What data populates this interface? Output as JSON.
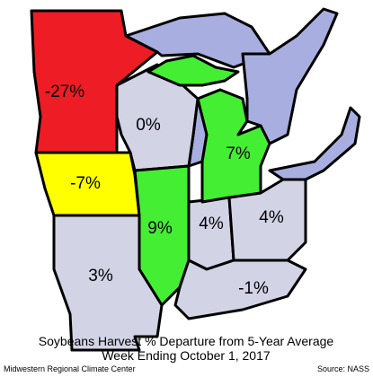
{
  "map": {
    "title": "Soybeans Harvest % Departure from 5-Year Average",
    "subtitle": "Week Ending October 1, 2017",
    "credit": "Midwestern Regional Climate Center",
    "source": "Source: NASS",
    "regions": [
      {
        "label": "-27%",
        "color": "#ee1c24"
      },
      {
        "label": "0%",
        "color": "#d3d3e6"
      },
      {
        "label": "-7%",
        "color": "#ffff00"
      },
      {
        "label": "9%",
        "color": "#44ee33"
      },
      {
        "label": "4%",
        "color": "#d3d3e6"
      },
      {
        "label": "4%",
        "color": "#d3d3e6"
      },
      {
        "label": "3%",
        "color": "#d3d3e6"
      },
      {
        "label": "-1%",
        "color": "#d3d3e6"
      },
      {
        "label": "7%",
        "color": "#44ee33"
      }
    ]
  }
}
